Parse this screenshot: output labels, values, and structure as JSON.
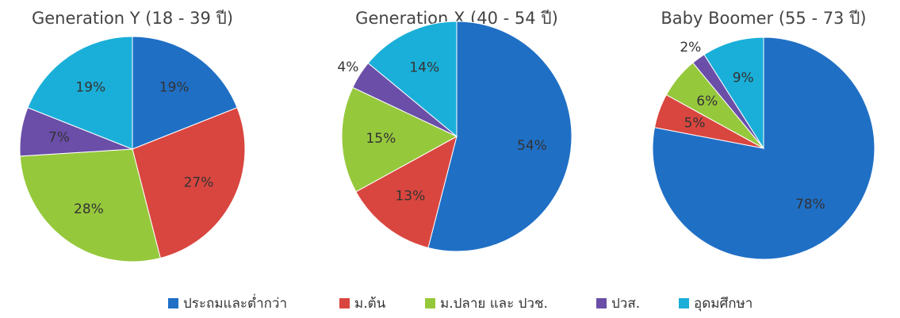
{
  "legend": {
    "categories": [
      "ประถมและต่ำกว่า",
      "ม.ต้น",
      "ม.ปลาย และ ปวช.",
      "ปวส.",
      "อุดมศึกษา"
    ],
    "colors": [
      "#1f6fc5",
      "#d9463f",
      "#96c83c",
      "#6a4ea8",
      "#1aafd8"
    ]
  },
  "chart_data": [
    {
      "type": "pie",
      "title": "Generation Y (18 - 39 ปี)",
      "values": [
        19,
        27,
        28,
        7,
        19
      ],
      "value_labels": [
        "19%",
        "27%",
        "28%",
        "7%",
        "19%"
      ]
    },
    {
      "type": "pie",
      "title": "Generation X (40 - 54 ปี)",
      "values": [
        54,
        13,
        15,
        4,
        14
      ],
      "value_labels": [
        "54%",
        "13%",
        "15%",
        "4%",
        "14%"
      ]
    },
    {
      "type": "pie",
      "title": "Baby Boomer (55 - 73 ปี)",
      "values": [
        78,
        5,
        6,
        2,
        9
      ],
      "value_labels": [
        "78%",
        "5%",
        "6%",
        "2%",
        "9%"
      ]
    }
  ]
}
